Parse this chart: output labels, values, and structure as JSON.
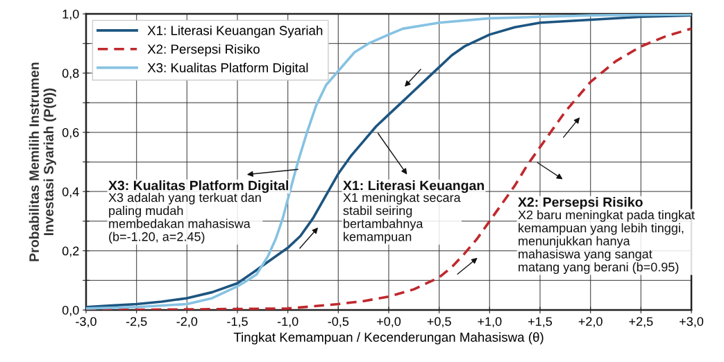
{
  "chart_data": {
    "type": "line",
    "xlabel": "Tingkat Kemampuan / Kecenderungan Mahasiswa (θ)",
    "ylabel": "Probabilitas Memilih Instrumen\nInvestasi Syariah (P(θ))",
    "series": [
      {
        "name": "X1: Literasi Keuangan Syariah",
        "color": "#1d5580",
        "line_style": "solid",
        "x": [
          -3,
          -2.75,
          -2.5,
          -2.25,
          -2,
          -1.75,
          -1.5,
          -1.33,
          -1.25,
          -1,
          -0.875,
          -0.75,
          -0.6,
          -0.5,
          -0.375,
          -0.25,
          -0.125,
          0,
          0.125,
          0.25,
          0.375,
          0.5,
          0.625,
          0.75,
          0.875,
          1.0,
          1.25,
          1.5,
          2,
          2.5,
          3
        ],
        "values": [
          0.01,
          0.015,
          0.02,
          0.028,
          0.04,
          0.06,
          0.09,
          0.13,
          0.15,
          0.21,
          0.25,
          0.31,
          0.4,
          0.46,
          0.52,
          0.57,
          0.62,
          0.66,
          0.7,
          0.74,
          0.78,
          0.82,
          0.86,
          0.89,
          0.91,
          0.93,
          0.955,
          0.97,
          0.98,
          0.99,
          0.995
        ]
      },
      {
        "name": "X2: Persepsi Risiko",
        "color": "#c0282d",
        "line_style": "dashed",
        "x": [
          -3,
          -2,
          -1,
          -0.5,
          -0.25,
          0,
          0.25,
          0.5,
          0.625,
          0.75,
          0.875,
          1.0,
          1.125,
          1.25,
          1.375,
          1.5,
          1.625,
          1.75,
          1.875,
          2.0,
          2.25,
          2.5,
          2.75,
          3
        ],
        "values": [
          0.0,
          0.002,
          0.005,
          0.02,
          0.03,
          0.045,
          0.07,
          0.11,
          0.145,
          0.19,
          0.24,
          0.3,
          0.36,
          0.42,
          0.49,
          0.55,
          0.61,
          0.67,
          0.72,
          0.77,
          0.84,
          0.89,
          0.925,
          0.95
        ]
      },
      {
        "name": "X3: Kualitas Platform Digital",
        "color": "#86c2e2",
        "line_style": "solid",
        "x": [
          -3,
          -2.5,
          -2,
          -1.75,
          -1.5,
          -1.4,
          -1.31,
          -1.2,
          -1.12,
          -1.05,
          -0.98,
          -0.9,
          -0.81,
          -0.72,
          -0.62,
          -0.34,
          -0.2,
          0,
          0.14,
          0.5,
          1.0,
          1.5,
          2,
          3
        ],
        "values": [
          0.005,
          0.01,
          0.02,
          0.04,
          0.08,
          0.1,
          0.12,
          0.18,
          0.24,
          0.31,
          0.4,
          0.5,
          0.6,
          0.69,
          0.76,
          0.87,
          0.9,
          0.93,
          0.95,
          0.97,
          0.985,
          0.99,
          0.995,
          0.998
        ]
      }
    ],
    "xlim": [
      -3,
      3
    ],
    "xticks": [
      {
        "value": -3,
        "label": "-3,0"
      },
      {
        "value": -2.5,
        "label": "-2,5"
      },
      {
        "value": -2,
        "label": "-2,0"
      },
      {
        "value": -1.5,
        "label": "-1,5"
      },
      {
        "value": -1,
        "label": "-1,0"
      },
      {
        "value": -0.5,
        "label": "-0,5"
      },
      {
        "value": 0,
        "label": "+0,0"
      },
      {
        "value": 0.5,
        "label": "+0,5"
      },
      {
        "value": 1,
        "label": "+1,0"
      },
      {
        "value": 1.5,
        "label": "+1,5"
      },
      {
        "value": 2,
        "label": "+2,0"
      },
      {
        "value": 2.5,
        "label": "+2,5"
      },
      {
        "value": 3,
        "label": "+3,0"
      }
    ],
    "ylim": [
      0,
      1
    ],
    "yticks": [
      {
        "value": 0,
        "label": "0,0"
      },
      {
        "value": 0.1,
        "label": null
      },
      {
        "value": 0.2,
        "label": "0,2"
      },
      {
        "value": 0.3,
        "label": null
      },
      {
        "value": 0.4,
        "label": "0,4"
      },
      {
        "value": 0.5,
        "label": null
      },
      {
        "value": 0.6,
        "label": "0,6"
      },
      {
        "value": 0.7,
        "label": null
      },
      {
        "value": 0.8,
        "label": "0,8"
      },
      {
        "value": 0.9,
        "label": null
      },
      {
        "value": 1,
        "label": "1,0"
      }
    ],
    "grid": true,
    "legend": "top left",
    "annotations": [
      "X3: Kualitas Platform Digital",
      "X3 adalah yang terkuat dan\npaling mudah\nmembedakan mahasiswa\n(b=-1.20, a=2.45)",
      "X1: Literasi Keuangan",
      "X1 meningkat secara\nstabil seiring\nbertambahnya\nkemampuan",
      "X2: Persepsi Risiko",
      "X2 baru meningkat pada tingkat\nkemampuan yang lebih tinggi,\nmenunjukkan hanya\nmahasiswa yang sangat\nmatang yang berani (b=0.95)"
    ]
  }
}
